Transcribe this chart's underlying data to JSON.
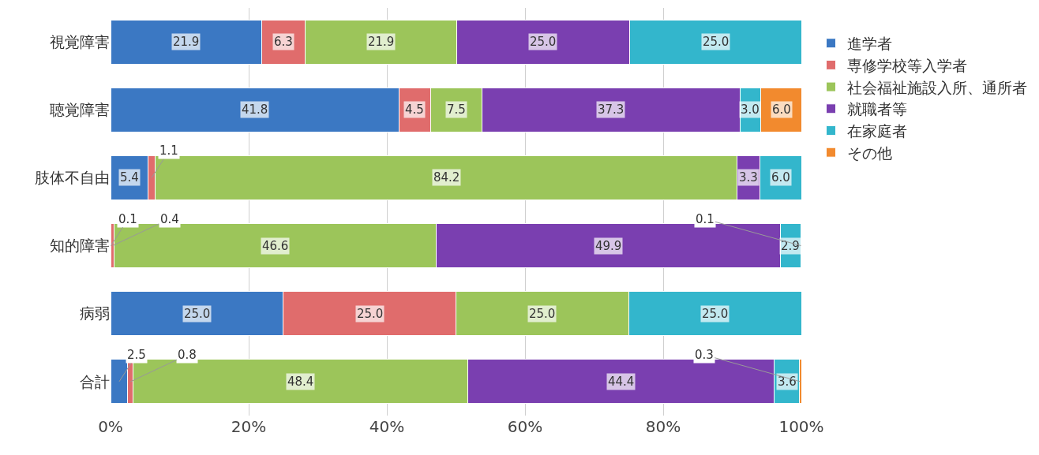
{
  "chart_data": {
    "type": "bar",
    "orientation": "horizontal",
    "stacked": true,
    "grid": "x",
    "legend": "right",
    "categories": [
      "視覚障害",
      "聴覚障害",
      "肢体不自由",
      "知的障害",
      "病弱",
      "合計"
    ],
    "series": [
      {
        "name": "進学者",
        "color": "#3b78c3",
        "values": [
          21.9,
          41.8,
          5.4,
          0.1,
          25.0,
          2.5
        ],
        "value_labels": [
          "21.9",
          "41.8",
          "5.4",
          "0.1",
          "25.0",
          "2.5"
        ]
      },
      {
        "name": "専修学校等入学者",
        "color": "#e06c6c",
        "values": [
          6.3,
          4.5,
          1.1,
          0.4,
          25.0,
          0.8
        ],
        "value_labels": [
          "6.3",
          "4.5",
          "1.1",
          "0.4",
          "25.0",
          "0.8"
        ]
      },
      {
        "name": "社会福祉施設入所、通所者",
        "color": "#9cc55a",
        "values": [
          21.9,
          7.5,
          84.2,
          46.6,
          25.0,
          48.4
        ],
        "value_labels": [
          "21.9",
          "7.5",
          "84.2",
          "46.6",
          "25.0",
          "48.4"
        ]
      },
      {
        "name": "就職者等",
        "color": "#7a3fb0",
        "values": [
          25.0,
          37.3,
          3.3,
          49.9,
          null,
          44.4
        ],
        "value_labels": [
          "25.0",
          "37.3",
          "3.3",
          "49.9",
          null,
          "44.4"
        ]
      },
      {
        "name": "在家庭者",
        "color": "#33b6cc",
        "values": [
          25.0,
          3.0,
          6.0,
          2.9,
          25.0,
          3.6
        ],
        "value_labels": [
          "25.0",
          "3.0",
          "6.0",
          "2.9",
          "25.0",
          "3.6"
        ]
      },
      {
        "name": "その他",
        "color": "#f28a2e",
        "values": [
          null,
          6.0,
          null,
          0.1,
          null,
          0.3
        ],
        "value_labels": [
          null,
          "6.0",
          null,
          "0.1",
          null,
          "0.3"
        ]
      }
    ],
    "xlim": [
      0,
      100
    ],
    "xticks": [
      {
        "value": 0,
        "label": "0%"
      },
      {
        "value": 20,
        "label": "20%"
      },
      {
        "value": 40,
        "label": "40%"
      },
      {
        "value": 60,
        "label": "60%"
      },
      {
        "value": 80,
        "label": "80%"
      },
      {
        "value": 100,
        "label": "100%"
      }
    ]
  }
}
